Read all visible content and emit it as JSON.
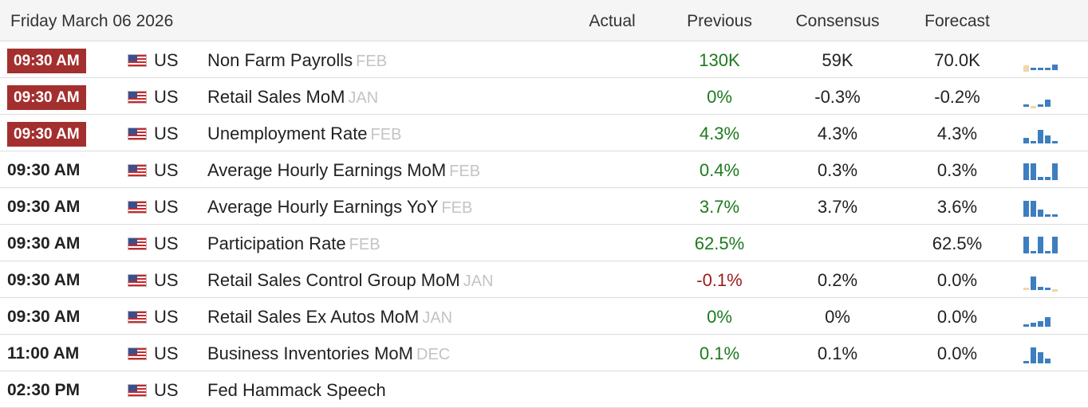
{
  "header": {
    "date": "Friday March 06 2026",
    "actual": "Actual",
    "previous": "Previous",
    "consensus": "Consensus",
    "forecast": "Forecast"
  },
  "colors": {
    "highlight_time": "#a32f2f",
    "positive": "#1d7a1d",
    "negative": "#9c1c1c",
    "spark_main": "#3d7ebf",
    "spark_light": "#f2d5a8"
  },
  "rows": [
    {
      "time": "09:30 AM",
      "highlight": true,
      "country": "US",
      "event": "Non Farm Payrolls",
      "period": "FEB",
      "actual": "",
      "previous": "130K",
      "previous_tone": "green",
      "consensus": "59K",
      "forecast": "70.0K",
      "spark": [
        {
          "v": 0.35,
          "pos": false,
          "c": "light"
        },
        {
          "v": 0.12,
          "pos": true,
          "c": "main"
        },
        {
          "v": 0.12,
          "pos": true,
          "c": "main"
        },
        {
          "v": 0.12,
          "pos": true,
          "c": "main"
        },
        {
          "v": 0.32,
          "pos": true,
          "c": "main"
        }
      ]
    },
    {
      "time": "09:30 AM",
      "highlight": true,
      "country": "US",
      "event": "Retail Sales MoM",
      "period": "JAN",
      "actual": "",
      "previous": "0%",
      "previous_tone": "green",
      "consensus": "-0.3%",
      "forecast": "-0.2%",
      "spark": [
        {
          "v": 0.1,
          "pos": true,
          "c": "main"
        },
        {
          "v": 0.12,
          "pos": false,
          "c": "light"
        },
        {
          "v": 0.12,
          "pos": true,
          "c": "main"
        },
        {
          "v": 0.42,
          "pos": true,
          "c": "main"
        }
      ]
    },
    {
      "time": "09:30 AM",
      "highlight": true,
      "country": "US",
      "event": "Unemployment Rate",
      "period": "FEB",
      "actual": "",
      "previous": "4.3%",
      "previous_tone": "green",
      "consensus": "4.3%",
      "forecast": "4.3%",
      "spark": [
        {
          "v": 0.3,
          "pos": true,
          "c": "main"
        },
        {
          "v": 0.0,
          "pos": true,
          "c": "main"
        },
        {
          "v": 0.75,
          "pos": true,
          "c": "main"
        },
        {
          "v": 0.45,
          "pos": true,
          "c": "main"
        },
        {
          "v": 0.15,
          "pos": true,
          "c": "main"
        }
      ]
    },
    {
      "time": "09:30 AM",
      "highlight": false,
      "country": "US",
      "event": "Average Hourly Earnings MoM",
      "period": "FEB",
      "actual": "",
      "previous": "0.4%",
      "previous_tone": "green",
      "consensus": "0.3%",
      "forecast": "0.3%",
      "spark": [
        {
          "v": 0.95,
          "pos": true,
          "c": "main"
        },
        {
          "v": 0.95,
          "pos": true,
          "c": "main"
        },
        {
          "v": 0.2,
          "pos": true,
          "c": "main"
        },
        {
          "v": 0.2,
          "pos": true,
          "c": "main"
        },
        {
          "v": 0.95,
          "pos": true,
          "c": "main"
        }
      ]
    },
    {
      "time": "09:30 AM",
      "highlight": false,
      "country": "US",
      "event": "Average Hourly Earnings YoY",
      "period": "FEB",
      "actual": "",
      "previous": "3.7%",
      "previous_tone": "green",
      "consensus": "3.7%",
      "forecast": "3.6%",
      "spark": [
        {
          "v": 0.9,
          "pos": true,
          "c": "main"
        },
        {
          "v": 0.9,
          "pos": true,
          "c": "main"
        },
        {
          "v": 0.4,
          "pos": true,
          "c": "main"
        },
        {
          "v": 0.12,
          "pos": true,
          "c": "main"
        },
        {
          "v": 0.12,
          "pos": true,
          "c": "main"
        }
      ]
    },
    {
      "time": "09:30 AM",
      "highlight": false,
      "country": "US",
      "event": "Participation Rate",
      "period": "FEB",
      "actual": "",
      "previous": "62.5%",
      "previous_tone": "green",
      "consensus": "",
      "forecast": "62.5%",
      "spark": [
        {
          "v": 0.95,
          "pos": true,
          "c": "main"
        },
        {
          "v": 0.0,
          "pos": true,
          "c": "main"
        },
        {
          "v": 0.95,
          "pos": true,
          "c": "main"
        },
        {
          "v": 0.15,
          "pos": true,
          "c": "main"
        },
        {
          "v": 0.95,
          "pos": true,
          "c": "main"
        }
      ]
    },
    {
      "time": "09:30 AM",
      "highlight": false,
      "country": "US",
      "event": "Retail Sales Control Group MoM",
      "period": "JAN",
      "actual": "",
      "previous": "-0.1%",
      "previous_tone": "red",
      "consensus": "0.2%",
      "forecast": "0.0%",
      "spark": [
        {
          "v": 0.1,
          "pos": true,
          "c": "light"
        },
        {
          "v": 0.75,
          "pos": true,
          "c": "main"
        },
        {
          "v": 0.2,
          "pos": true,
          "c": "main"
        },
        {
          "v": 0.0,
          "pos": true,
          "c": "main"
        },
        {
          "v": 0.1,
          "pos": false,
          "c": "light"
        }
      ]
    },
    {
      "time": "09:30 AM",
      "highlight": false,
      "country": "US",
      "event": "Retail Sales Ex Autos MoM",
      "period": "JAN",
      "actual": "",
      "previous": "0%",
      "previous_tone": "green",
      "consensus": "0%",
      "forecast": "0.0%",
      "spark": [
        {
          "v": 0.1,
          "pos": true,
          "c": "main"
        },
        {
          "v": 0.22,
          "pos": true,
          "c": "main"
        },
        {
          "v": 0.3,
          "pos": true,
          "c": "main"
        },
        {
          "v": 0.55,
          "pos": true,
          "c": "main"
        }
      ]
    },
    {
      "time": "11:00 AM",
      "highlight": false,
      "country": "US",
      "event": "Business Inventories MoM",
      "period": "DEC",
      "actual": "",
      "previous": "0.1%",
      "previous_tone": "green",
      "consensus": "0.1%",
      "forecast": "0.0%",
      "spark": [
        {
          "v": 0.0,
          "pos": true,
          "c": "main"
        },
        {
          "v": 0.9,
          "pos": true,
          "c": "main"
        },
        {
          "v": 0.65,
          "pos": true,
          "c": "main"
        },
        {
          "v": 0.25,
          "pos": true,
          "c": "main"
        }
      ]
    },
    {
      "time": "02:30 PM",
      "highlight": false,
      "country": "US",
      "event": "Fed Hammack Speech",
      "period": "",
      "actual": "",
      "previous": "",
      "previous_tone": "",
      "consensus": "",
      "forecast": "",
      "spark": []
    }
  ]
}
